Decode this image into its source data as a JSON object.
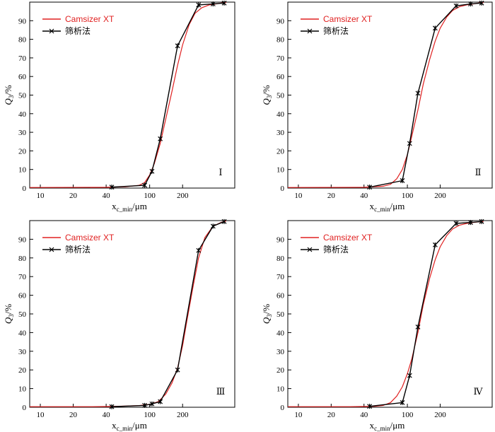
{
  "chart_data": [
    {
      "type": "line",
      "panel_label": "Ⅰ",
      "xscale": "log",
      "x_ticks": [
        10,
        20,
        40,
        100,
        200
      ],
      "y_ticks": [
        0,
        10,
        20,
        30,
        40,
        50,
        60,
        70,
        80,
        90
      ],
      "xlim": [
        8,
        600
      ],
      "ylim": [
        0,
        100
      ],
      "xlabel_main": "x",
      "xlabel_sub": "c_min",
      "xlabel_unit": "/μm",
      "ylabel_main": "Q",
      "ylabel_sub": "3",
      "ylabel_unit": "/%",
      "series": [
        {
          "name": "Camsizer XT",
          "color": "#e02020",
          "x": [
            8,
            40,
            60,
            80,
            90,
            100,
            110,
            125,
            140,
            160,
            180,
            200,
            230,
            260,
            300,
            350,
            400,
            450,
            500
          ],
          "y": [
            0.3,
            0.4,
            0.7,
            1.5,
            3,
            7,
            13,
            24,
            37,
            52,
            66,
            77,
            88,
            94,
            97,
            98.5,
            99,
            99.5,
            99.8
          ]
        },
        {
          "name": "筛析法",
          "color": "#000000",
          "x": [
            45,
            90,
            105,
            125,
            180,
            280,
            380,
            480
          ],
          "y": [
            0.5,
            1.5,
            9,
            26.5,
            76.5,
            98.5,
            99,
            99.5
          ]
        }
      ]
    },
    {
      "type": "line",
      "panel_label": "Ⅱ",
      "xscale": "log",
      "x_ticks": [
        10,
        20,
        40,
        100,
        200
      ],
      "y_ticks": [
        0,
        10,
        20,
        30,
        40,
        50,
        60,
        70,
        80,
        90
      ],
      "xlim": [
        8,
        600
      ],
      "ylim": [
        0,
        100
      ],
      "xlabel_main": "x",
      "xlabel_sub": "c_min",
      "xlabel_unit": "/μm",
      "ylabel_main": "Q",
      "ylabel_sub": "3",
      "ylabel_unit": "/%",
      "series": [
        {
          "name": "Camsizer XT",
          "color": "#e02020",
          "x": [
            8,
            40,
            60,
            70,
            80,
            90,
            100,
            110,
            125,
            140,
            160,
            180,
            200,
            230,
            260,
            300,
            350,
            400,
            450,
            500
          ],
          "y": [
            0.3,
            0.4,
            1,
            2,
            5,
            10,
            18,
            28,
            42,
            56,
            69,
            79,
            86,
            92,
            95.5,
            97.5,
            98.5,
            99,
            99.5,
            99.8
          ]
        },
        {
          "name": "筛析法",
          "color": "#000000",
          "x": [
            45,
            90,
            105,
            125,
            180,
            280,
            380,
            480
          ],
          "y": [
            0.5,
            4,
            24,
            51,
            86,
            98,
            99,
            99.5
          ]
        }
      ]
    },
    {
      "type": "line",
      "panel_label": "Ⅲ",
      "xscale": "log",
      "x_ticks": [
        10,
        20,
        40,
        100,
        200
      ],
      "y_ticks": [
        0,
        10,
        20,
        30,
        40,
        50,
        60,
        70,
        80,
        90
      ],
      "xlim": [
        8,
        600
      ],
      "ylim": [
        0,
        100
      ],
      "xlabel_main": "x",
      "xlabel_sub": "c_min",
      "xlabel_unit": "/μm",
      "ylabel_main": "Q",
      "ylabel_sub": "3",
      "ylabel_unit": "/%",
      "series": [
        {
          "name": "Camsizer XT",
          "color": "#e02020",
          "x": [
            8,
            30,
            45,
            60,
            80,
            100,
            120,
            140,
            160,
            180,
            200,
            220,
            250,
            280,
            320,
            380,
            450,
            500
          ],
          "y": [
            0.3,
            0.3,
            0.4,
            0.6,
            0.9,
            1.5,
            3,
            7,
            13,
            21,
            33,
            47,
            65,
            80,
            91,
            97,
            99,
            99.8
          ]
        },
        {
          "name": "筛析法",
          "color": "#000000",
          "x": [
            45,
            90,
            105,
            125,
            180,
            280,
            380,
            480
          ],
          "y": [
            0.3,
            1,
            1.8,
            3,
            20,
            84,
            97,
            99.5
          ]
        }
      ]
    },
    {
      "type": "line",
      "panel_label": "Ⅳ",
      "xscale": "log",
      "x_ticks": [
        10,
        20,
        40,
        100,
        200
      ],
      "y_ticks": [
        0,
        10,
        20,
        30,
        40,
        50,
        60,
        70,
        80,
        90
      ],
      "xlim": [
        8,
        600
      ],
      "ylim": [
        0,
        100
      ],
      "xlabel_main": "x",
      "xlabel_sub": "c_min",
      "xlabel_unit": "/μm",
      "ylabel_main": "Q",
      "ylabel_sub": "3",
      "ylabel_unit": "/%",
      "series": [
        {
          "name": "Camsizer XT",
          "color": "#e02020",
          "x": [
            8,
            30,
            50,
            60,
            70,
            80,
            90,
            100,
            110,
            125,
            140,
            160,
            180,
            200,
            230,
            260,
            300,
            350,
            400,
            450,
            500
          ],
          "y": [
            0.3,
            0.3,
            0.5,
            1,
            2.5,
            6,
            11,
            18,
            26,
            40,
            55,
            69,
            79,
            86,
            92,
            95.5,
            97.5,
            98.5,
            99,
            99.3,
            99.5
          ]
        },
        {
          "name": "筛析法",
          "color": "#000000",
          "x": [
            45,
            90,
            105,
            125,
            180,
            280,
            380,
            480
          ],
          "y": [
            0.5,
            2.5,
            17,
            43,
            87,
            98.5,
            99,
            99.5
          ]
        }
      ]
    }
  ]
}
